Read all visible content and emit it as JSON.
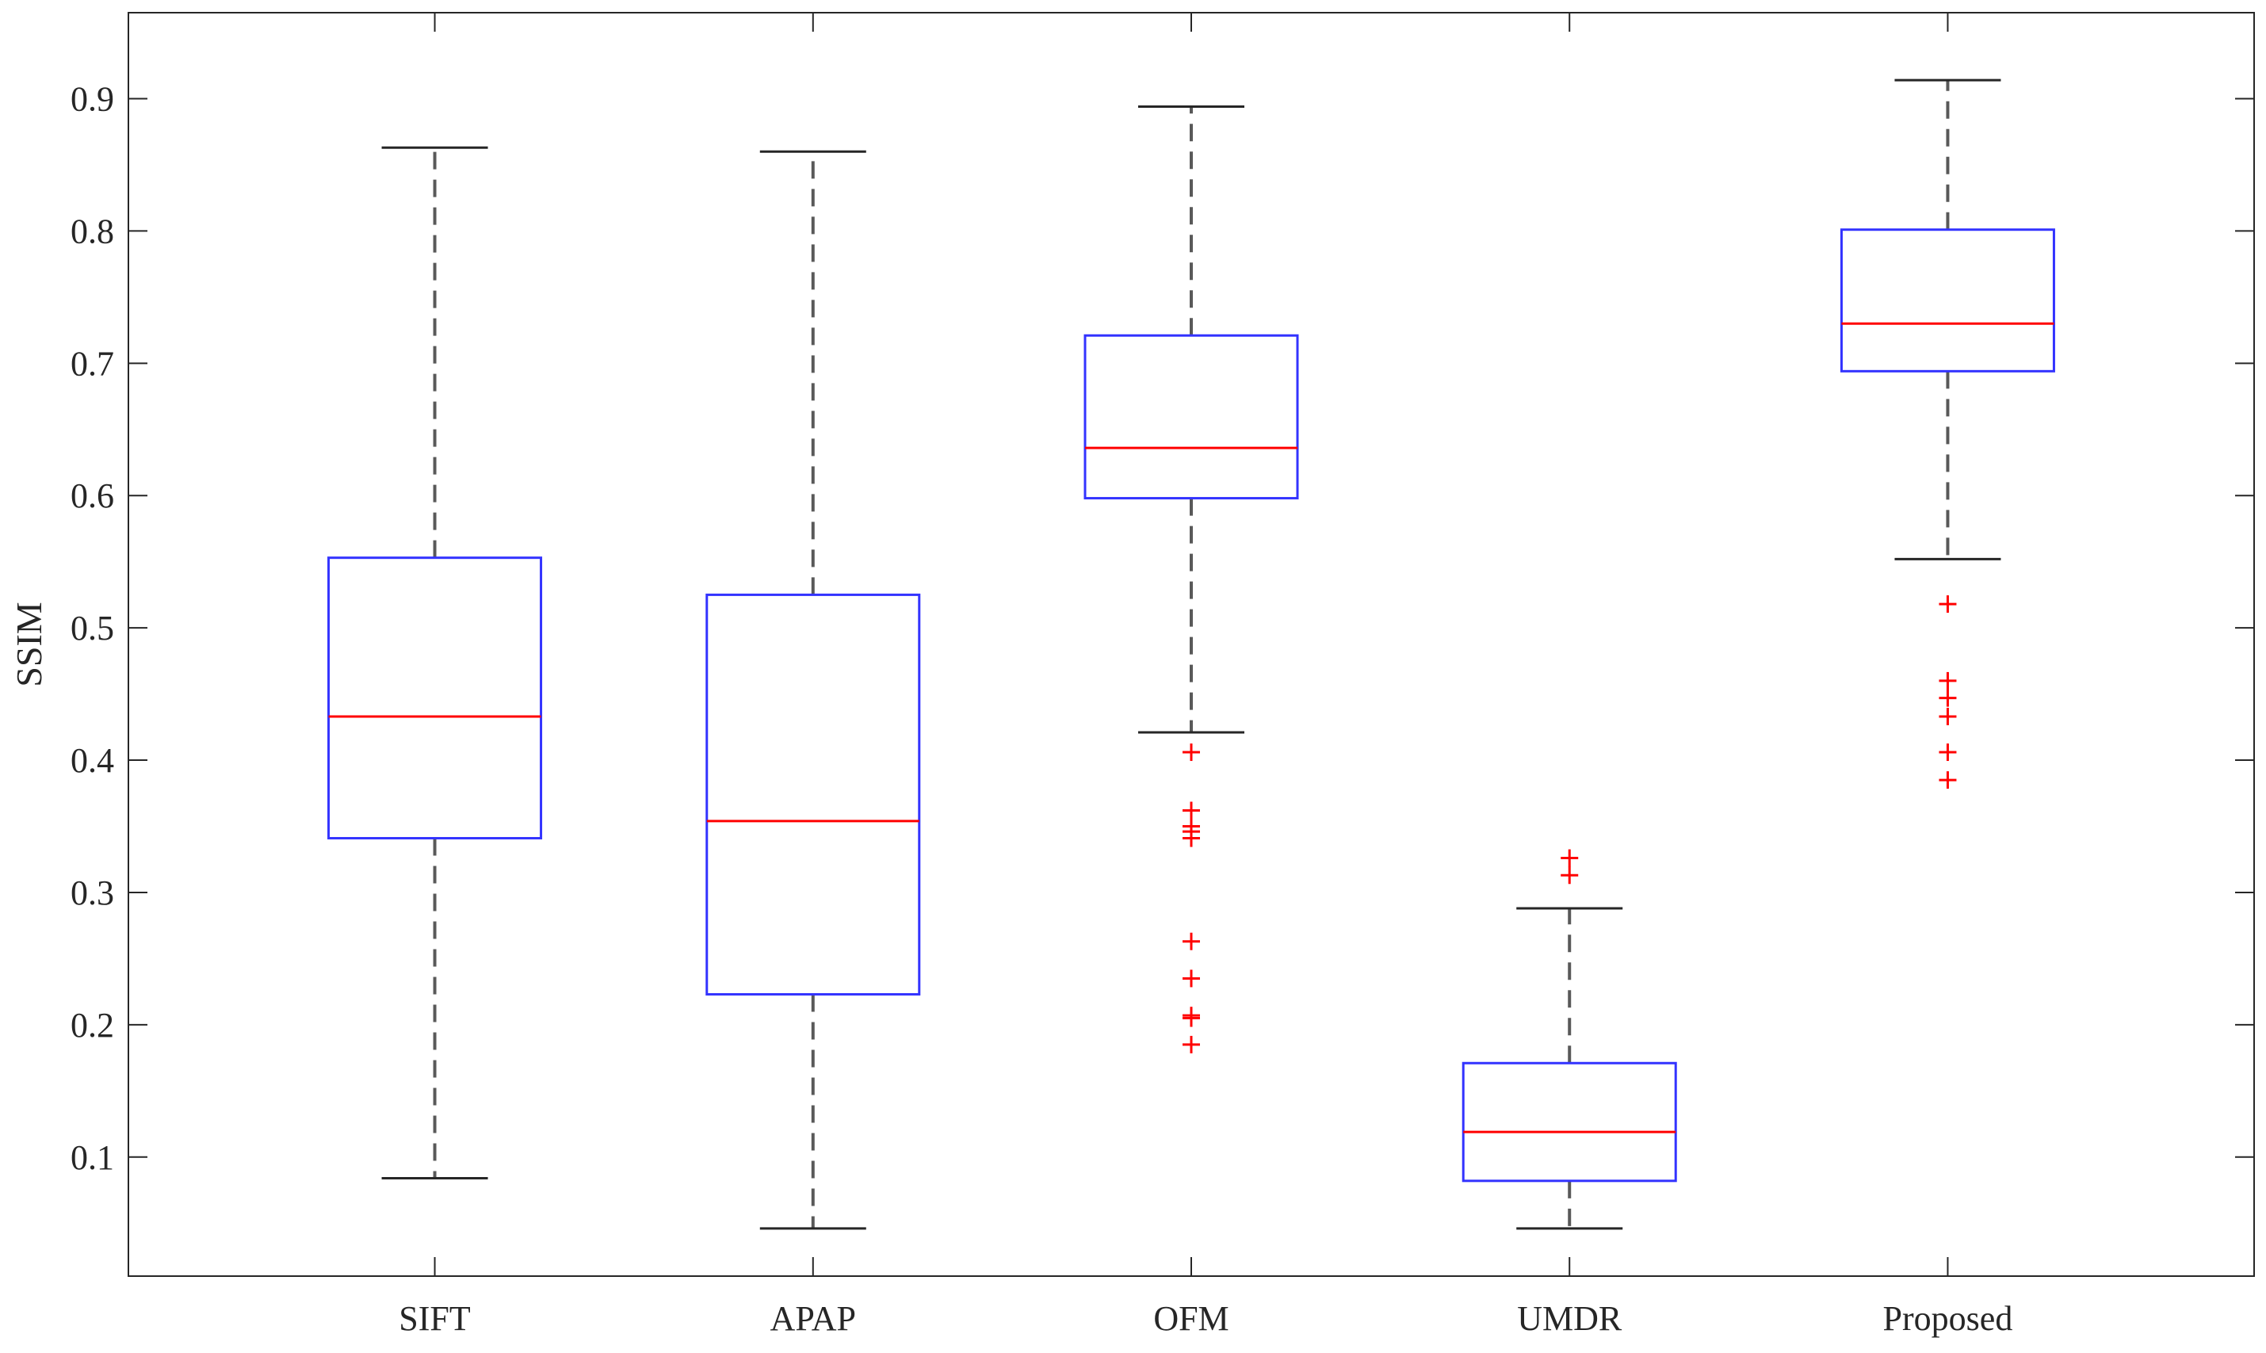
{
  "chart_data": {
    "type": "boxplot",
    "title": "",
    "xlabel": "",
    "ylabel": "SSIM",
    "ylim": [
      0.01,
      0.965
    ],
    "yticks": [
      0.1,
      0.2,
      0.3,
      0.4,
      0.5,
      0.6,
      0.7,
      0.8,
      0.9
    ],
    "ytick_labels": [
      "0.1",
      "0.2",
      "0.3",
      "0.4",
      "0.5",
      "0.6",
      "0.7",
      "0.8",
      "0.9"
    ],
    "grid": false,
    "legend": "none",
    "colors": {
      "box": "#3333ff",
      "median": "#ff0000",
      "whisker": "#595959",
      "outlier": "#ff0000",
      "axis": "#262626"
    },
    "categories": [
      "SIFT",
      "APAP",
      "OFM",
      "UMDR",
      "Proposed"
    ],
    "boxes": [
      {
        "category": "SIFT",
        "whisker_low": 0.084,
        "q1": 0.341,
        "median": 0.433,
        "q3": 0.553,
        "whisker_high": 0.863,
        "outliers": []
      },
      {
        "category": "APAP",
        "whisker_low": 0.046,
        "q1": 0.223,
        "median": 0.354,
        "q3": 0.525,
        "whisker_high": 0.86,
        "outliers": []
      },
      {
        "category": "OFM",
        "whisker_low": 0.421,
        "q1": 0.598,
        "median": 0.636,
        "q3": 0.721,
        "whisker_high": 0.894,
        "outliers": [
          0.406,
          0.362,
          0.35,
          0.346,
          0.341,
          0.263,
          0.235,
          0.207,
          0.205,
          0.185
        ]
      },
      {
        "category": "UMDR",
        "whisker_low": 0.046,
        "q1": 0.082,
        "median": 0.119,
        "q3": 0.171,
        "whisker_high": 0.288,
        "outliers": [
          0.326,
          0.313
        ]
      },
      {
        "category": "Proposed",
        "whisker_low": 0.552,
        "q1": 0.694,
        "median": 0.73,
        "q3": 0.801,
        "whisker_high": 0.914,
        "outliers": [
          0.518,
          0.46,
          0.447,
          0.433,
          0.406,
          0.385
        ]
      }
    ]
  }
}
